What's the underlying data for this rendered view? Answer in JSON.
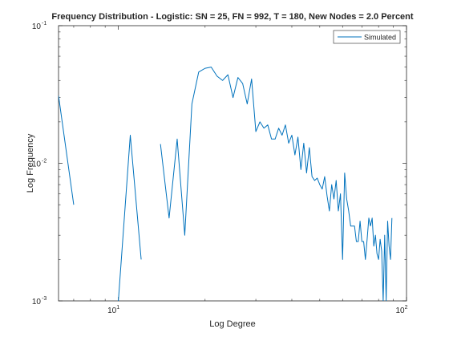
{
  "chart_data": {
    "type": "line",
    "title": "Frequency Distribution - Logistic: SN = 25, FN = 992, T = 180, New Nodes = 2.0 Percent",
    "xlabel": "Log Degree",
    "ylabel": "Log Frequency",
    "xscale": "log",
    "yscale": "log",
    "xlim": [
      6.2,
      100
    ],
    "ylim": [
      0.001,
      0.1
    ],
    "x_ticks": [
      {
        "value": 10,
        "base": "10",
        "exp": "1"
      },
      {
        "value": 100,
        "base": "10",
        "exp": "2"
      }
    ],
    "y_ticks": [
      {
        "value": 0.001,
        "base": "10",
        "exp": "-3"
      },
      {
        "value": 0.01,
        "base": "10",
        "exp": "-2"
      },
      {
        "value": 0.1,
        "base": "10",
        "exp": "-1"
      }
    ],
    "grid": false,
    "legend_position": "top-right",
    "series": [
      {
        "name": "Simulated",
        "color": "#0072bd",
        "points": [
          [
            6.2,
            0.031
          ],
          [
            7.0,
            0.005
          ],
          [
            null,
            null
          ],
          [
            10.0,
            0.001
          ],
          [
            11.0,
            0.016
          ],
          [
            12.0,
            0.002
          ],
          [
            null,
            null
          ],
          [
            14.0,
            0.0138
          ],
          [
            15.0,
            0.004
          ],
          [
            16.0,
            0.015
          ],
          [
            17.0,
            0.003
          ],
          [
            18.0,
            0.027
          ],
          [
            19.0,
            0.046
          ],
          [
            20.0,
            0.049
          ],
          [
            21.0,
            0.05
          ],
          [
            22.0,
            0.043
          ],
          [
            23.0,
            0.04
          ],
          [
            24.0,
            0.044
          ],
          [
            25.0,
            0.03
          ],
          [
            26.0,
            0.042
          ],
          [
            27.0,
            0.038
          ],
          [
            28.0,
            0.027
          ],
          [
            29.0,
            0.041
          ],
          [
            30.0,
            0.017
          ],
          [
            31.0,
            0.02
          ],
          [
            32.0,
            0.018
          ],
          [
            33.0,
            0.019
          ],
          [
            34.0,
            0.015
          ],
          [
            35.0,
            0.015
          ],
          [
            36.0,
            0.018
          ],
          [
            37.0,
            0.016
          ],
          [
            38.0,
            0.019
          ],
          [
            39.0,
            0.014
          ],
          [
            40.0,
            0.016
          ],
          [
            41.0,
            0.0115
          ],
          [
            42.0,
            0.0155
          ],
          [
            43.0,
            0.009
          ],
          [
            44.0,
            0.014
          ],
          [
            45.0,
            0.0085
          ],
          [
            46.0,
            0.013
          ],
          [
            47.0,
            0.008
          ],
          [
            48.0,
            0.0075
          ],
          [
            49.0,
            0.0078
          ],
          [
            50.0,
            0.007
          ],
          [
            51.0,
            0.0065
          ],
          [
            52.0,
            0.008
          ],
          [
            53.0,
            0.0058
          ],
          [
            54.0,
            0.0045
          ],
          [
            55.0,
            0.007
          ],
          [
            56.0,
            0.0055
          ],
          [
            57.0,
            0.0075
          ],
          [
            58.0,
            0.0045
          ],
          [
            59.0,
            0.006
          ],
          [
            60.0,
            0.002
          ],
          [
            61.0,
            0.0085
          ],
          [
            62.0,
            0.0055
          ],
          [
            63.0,
            0.0045
          ],
          [
            64.0,
            0.0035
          ],
          [
            65.0,
            0.0035
          ],
          [
            66.0,
            0.0035
          ],
          [
            67.0,
            0.0027
          ],
          [
            68.0,
            0.0027
          ],
          [
            69.0,
            0.0038
          ],
          [
            70.0,
            0.0027
          ],
          [
            71.0,
            0.0027
          ],
          [
            72.0,
            0.002
          ],
          [
            73.0,
            0.0028
          ],
          [
            74.0,
            0.004
          ],
          [
            75.0,
            0.0035
          ],
          [
            76.0,
            0.004
          ],
          [
            77.0,
            0.0025
          ],
          [
            78.0,
            0.003
          ],
          [
            79.0,
            0.0022
          ],
          [
            80.0,
            0.002
          ],
          [
            81.0,
            0.0028
          ],
          [
            82.0,
            0.0023
          ],
          [
            83.0,
            0.001
          ],
          [
            84.0,
            0.003
          ],
          [
            85.0,
            0.001
          ],
          [
            86.0,
            0.0038
          ],
          [
            87.0,
            0.0025
          ],
          [
            88.0,
            0.002
          ],
          [
            89.0,
            0.004
          ]
        ]
      }
    ]
  }
}
